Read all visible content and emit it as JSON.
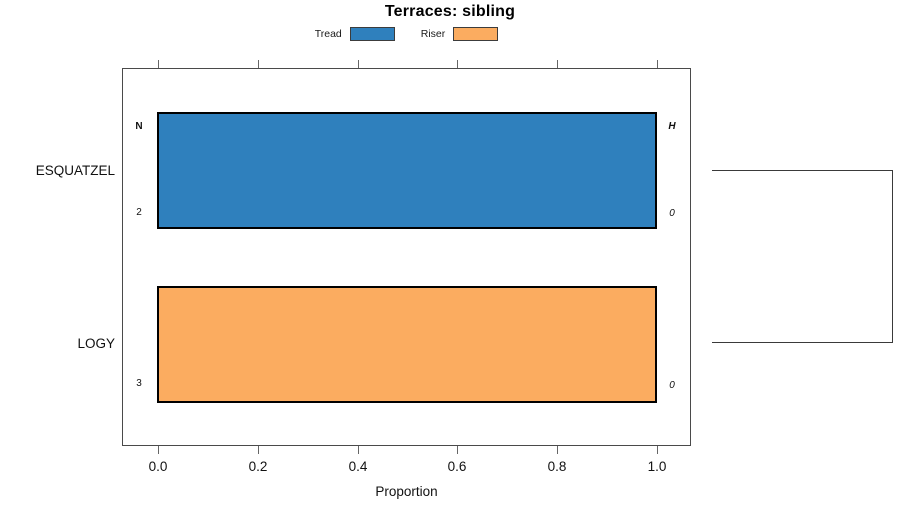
{
  "chart_data": {
    "type": "bar",
    "orientation": "horizontal",
    "title": "Terraces: sibling",
    "xlabel": "Proportion",
    "xlim": [
      0,
      1
    ],
    "x_ticks": [
      0.0,
      0.2,
      0.4,
      0.6,
      0.8,
      1.0
    ],
    "x_tick_labels": [
      "0.0",
      "0.2",
      "0.4",
      "0.6",
      "0.8",
      "1.0"
    ],
    "grid": false,
    "legend_position": "top-center",
    "legend": [
      {
        "label": "Tread",
        "color": "#2F80BD"
      },
      {
        "label": "Riser",
        "color": "#FBAC60"
      }
    ],
    "categories": [
      "ESQUATZEL",
      "LOGY"
    ],
    "rows": [
      {
        "category": "ESQUATZEL",
        "series": "Tread",
        "value": 1.0,
        "color": "#2F80BD",
        "annotations": {
          "left_top": "N",
          "left_bottom": "2",
          "right_top": "H",
          "right_bottom": "0"
        }
      },
      {
        "category": "LOGY",
        "series": "Riser",
        "value": 1.0,
        "color": "#FBAC60",
        "annotations": {
          "left_top": "",
          "left_bottom": "3",
          "right_top": "",
          "right_bottom": "0"
        }
      }
    ],
    "sibling_bracket": {
      "connects": [
        "ESQUATZEL",
        "LOGY"
      ],
      "side": "right"
    }
  }
}
